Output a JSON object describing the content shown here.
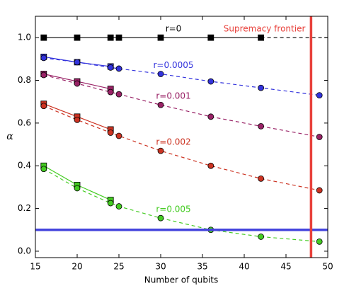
{
  "chart_data": {
    "type": "line",
    "xlabel": "Number of qubits",
    "ylabel": "α",
    "xlim": [
      15,
      50
    ],
    "ylim": [
      -0.03,
      1.1
    ],
    "xticks": [
      15,
      20,
      25,
      30,
      35,
      40,
      45,
      50
    ],
    "yticks": [
      {
        "value": 0,
        "label": "0.0"
      },
      0.2,
      0.4,
      0.6,
      0.8,
      {
        "value": 1,
        "label": "1.0"
      }
    ],
    "series": [
      {
        "name": "r=0",
        "color": "#000000",
        "style": "solid",
        "marker": "square",
        "x": [
          16,
          20,
          24,
          25,
          30,
          36,
          42
        ],
        "values": [
          1,
          1,
          1,
          1,
          1,
          1,
          1
        ]
      },
      {
        "color": "#000000",
        "style": "dashed",
        "marker": "none",
        "x": [
          42,
          50
        ],
        "values": [
          1,
          1
        ]
      },
      {
        "color": "#3333dd",
        "style": "solid",
        "marker": "square",
        "x": [
          16,
          20,
          24
        ],
        "values": [
          0.91,
          0.885,
          0.865
        ]
      },
      {
        "name": "r=0.0005",
        "color": "#3333dd",
        "style": "dashed",
        "marker": "circle",
        "x": [
          16,
          20,
          24,
          25,
          30,
          36,
          42,
          49
        ],
        "values": [
          0.905,
          0.885,
          0.86,
          0.855,
          0.83,
          0.795,
          0.765,
          0.73
        ]
      },
      {
        "color": "#992266",
        "style": "solid",
        "marker": "square",
        "x": [
          16,
          20,
          24
        ],
        "values": [
          0.83,
          0.795,
          0.76
        ]
      },
      {
        "name": "r=0.001",
        "color": "#992266",
        "style": "dashed",
        "marker": "circle",
        "x": [
          16,
          20,
          24,
          25,
          30,
          36,
          42,
          49
        ],
        "values": [
          0.825,
          0.785,
          0.745,
          0.735,
          0.685,
          0.63,
          0.585,
          0.535
        ]
      },
      {
        "color": "#cc3322",
        "style": "solid",
        "marker": "square",
        "x": [
          16,
          20,
          24
        ],
        "values": [
          0.69,
          0.63,
          0.57
        ]
      },
      {
        "name": "r=0.002",
        "color": "#cc3322",
        "style": "dashed",
        "marker": "circle",
        "x": [
          16,
          20,
          24,
          25,
          30,
          36,
          42,
          49
        ],
        "values": [
          0.68,
          0.615,
          0.555,
          0.54,
          0.47,
          0.4,
          0.34,
          0.285
        ]
      },
      {
        "color": "#44cc22",
        "style": "solid",
        "marker": "square",
        "x": [
          16,
          20,
          24
        ],
        "values": [
          0.4,
          0.31,
          0.24
        ]
      },
      {
        "name": "r=0.005",
        "color": "#44cc22",
        "style": "dashed",
        "marker": "circle",
        "x": [
          16,
          20,
          24,
          25,
          30,
          36,
          42,
          49
        ],
        "values": [
          0.385,
          0.295,
          0.225,
          0.21,
          0.155,
          0.1,
          0.068,
          0.045
        ]
      }
    ],
    "hlines": [
      {
        "value": 0.1,
        "color": "#4444dd"
      }
    ],
    "vlines": [
      {
        "value": 48,
        "color": "#e8403a",
        "label": "Supremacy frontier"
      }
    ]
  }
}
